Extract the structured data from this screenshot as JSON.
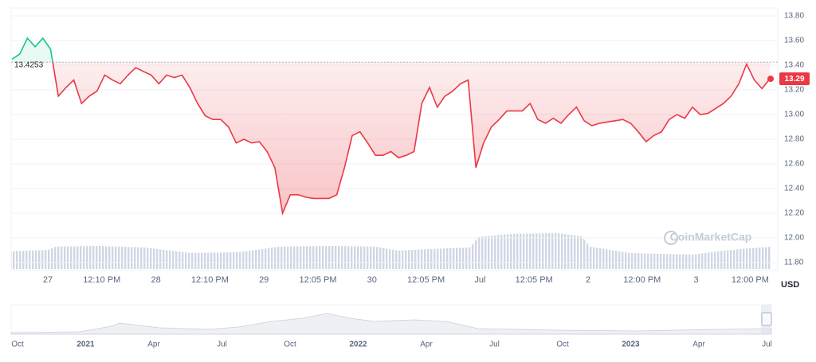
{
  "chart_data": {
    "type": "line",
    "baseline": {
      "value": 13.4253,
      "label": "13.4253"
    },
    "current": {
      "value": 13.29,
      "label": "13.29"
    },
    "up_color": "#16c784",
    "down_color": "#ea3943",
    "x_labels": [
      "27",
      "12:10 PM",
      "28",
      "12:10 PM",
      "29",
      "12:05 PM",
      "30",
      "12:05 PM",
      "Jul",
      "12:05 PM",
      "2",
      "12:00 PM",
      "3",
      "12:00 PM"
    ],
    "series": [
      {
        "color": "#ea3943",
        "values": [
          13.45,
          13.49,
          13.62,
          13.55,
          13.62,
          13.53,
          13.15,
          13.22,
          13.28,
          13.09,
          13.15,
          13.19,
          13.32,
          13.28,
          13.25,
          13.32,
          13.38,
          13.35,
          13.32,
          13.25,
          13.32,
          13.3,
          13.32,
          13.22,
          13.09,
          12.99,
          12.96,
          12.96,
          12.9,
          12.77,
          12.8,
          12.77,
          12.78,
          12.7,
          12.57,
          12.2,
          12.35,
          12.35,
          12.33,
          12.32,
          12.32,
          12.32,
          12.35,
          12.57,
          12.83,
          12.86,
          12.77,
          12.67,
          12.67,
          12.7,
          12.65,
          12.67,
          12.7,
          13.09,
          13.22,
          13.06,
          13.15,
          13.19,
          13.25,
          13.28,
          12.57,
          12.77,
          12.9,
          12.96,
          13.03,
          13.03,
          13.03,
          13.09,
          12.96,
          12.93,
          12.97,
          12.93,
          13.0,
          13.06,
          12.95,
          12.91,
          12.93,
          12.94,
          12.95,
          12.96,
          12.93,
          12.86,
          12.78,
          12.83,
          12.86,
          12.96,
          13.0,
          12.97,
          13.06,
          13.0,
          13.01,
          13.05,
          13.09,
          13.15,
          13.25,
          13.41,
          13.28,
          13.21,
          13.29
        ]
      }
    ],
    "ylim": [
      11.8,
      13.8
    ],
    "yticks": [
      {
        "value": 11.8,
        "label": "11.80"
      },
      {
        "value": 12.0,
        "label": "12.00"
      },
      {
        "value": 12.2,
        "label": "12.20"
      },
      {
        "value": 12.4,
        "label": "12.40"
      },
      {
        "value": 12.6,
        "label": "12.60"
      },
      {
        "value": 12.8,
        "label": "12.80"
      },
      {
        "value": 13.0,
        "label": "13.00"
      },
      {
        "value": 13.2,
        "label": "13.20"
      },
      {
        "value": 13.4,
        "label": "13.40"
      },
      {
        "value": 13.6,
        "label": "13.60"
      },
      {
        "value": 13.8,
        "label": "13.80"
      }
    ],
    "grid": true,
    "currency": "USD",
    "watermark": "CoinMarketCap",
    "navigator_labels": [
      "Oct",
      "2021",
      "Apr",
      "Jul",
      "Oct",
      "2022",
      "Apr",
      "Jul",
      "Oct",
      "2023",
      "Apr",
      "Jul"
    ]
  }
}
